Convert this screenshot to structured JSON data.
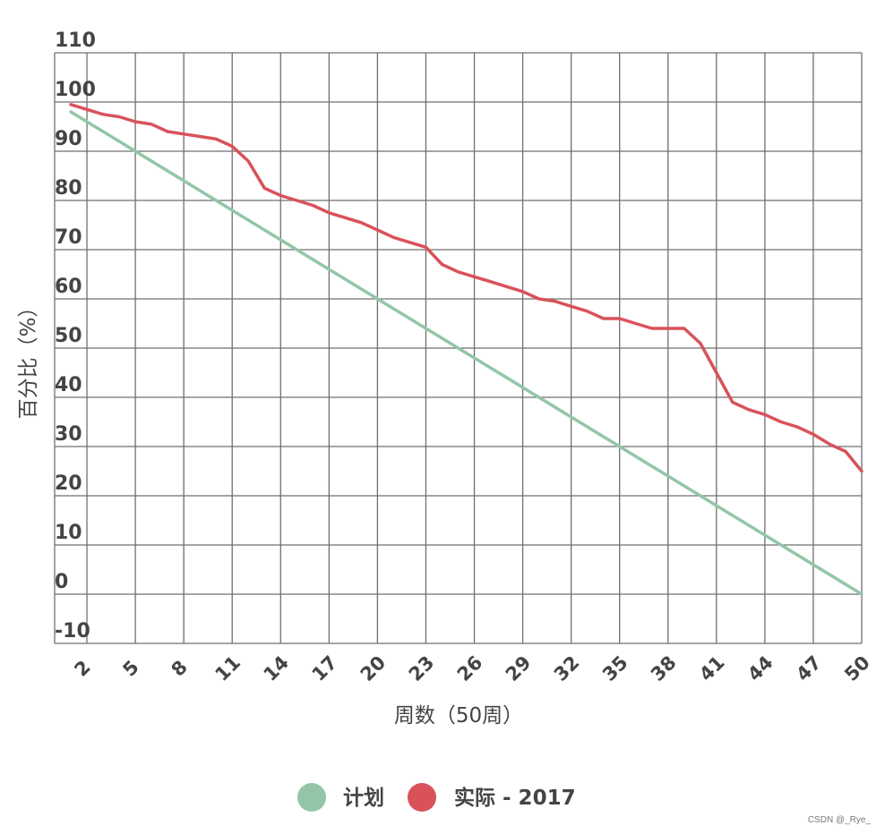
{
  "chart_data": {
    "type": "line",
    "title": "",
    "xlabel": "周数（50周）",
    "ylabel": "百分比（%）",
    "ylim": [
      -10,
      110
    ],
    "xlim": [
      0,
      50
    ],
    "y_ticks": [
      -10,
      0,
      10,
      20,
      30,
      40,
      50,
      60,
      70,
      80,
      90,
      100,
      110
    ],
    "x_ticks": [
      2,
      5,
      8,
      11,
      14,
      17,
      20,
      23,
      26,
      29,
      32,
      35,
      38,
      41,
      44,
      47,
      50
    ],
    "grid": true,
    "legend_position": "bottom-center",
    "series": [
      {
        "name": "计划",
        "color": "#93c6a8",
        "x": [
          1,
          2,
          3,
          4,
          5,
          6,
          7,
          8,
          9,
          10,
          11,
          12,
          13,
          14,
          15,
          16,
          17,
          18,
          19,
          20,
          21,
          22,
          23,
          24,
          25,
          26,
          27,
          28,
          29,
          30,
          31,
          32,
          33,
          34,
          35,
          36,
          37,
          38,
          39,
          40,
          41,
          42,
          43,
          44,
          45,
          46,
          47,
          48,
          49,
          50
        ],
        "values": [
          98,
          96,
          94,
          92,
          90,
          88,
          86,
          84,
          82,
          80,
          78,
          76,
          74,
          72,
          70,
          68,
          66,
          64,
          62,
          60,
          58,
          56,
          54,
          52,
          50,
          48,
          46,
          44,
          42,
          40,
          38,
          36,
          34,
          32,
          30,
          28,
          26,
          24,
          22,
          20,
          18,
          16,
          14,
          12,
          10,
          8,
          6,
          4,
          2,
          0
        ]
      },
      {
        "name": "实际 - 2017",
        "color": "#d9525a",
        "x": [
          1,
          2,
          3,
          4,
          5,
          6,
          7,
          8,
          9,
          10,
          11,
          12,
          13,
          14,
          15,
          16,
          17,
          18,
          19,
          20,
          21,
          22,
          23,
          24,
          25,
          26,
          27,
          28,
          29,
          30,
          31,
          32,
          33,
          34,
          35,
          36,
          37,
          38,
          39,
          40,
          41,
          42,
          43,
          44,
          45,
          46,
          47,
          48,
          49,
          50
        ],
        "values": [
          99.5,
          98.5,
          97.5,
          97,
          96,
          95.5,
          94,
          93.5,
          93,
          92.5,
          91,
          88,
          82.5,
          81,
          80,
          79,
          77.5,
          76.5,
          75.5,
          74,
          72.5,
          71.5,
          70.5,
          67,
          65.5,
          64.5,
          63.5,
          62.5,
          61.5,
          60,
          59.5,
          58.5,
          57.5,
          56,
          56,
          55,
          54,
          54,
          54,
          51,
          45,
          39,
          37.5,
          36.5,
          35,
          34,
          32.5,
          30.5,
          29,
          25
        ]
      }
    ]
  },
  "watermark": "CSDN @_Rye_"
}
